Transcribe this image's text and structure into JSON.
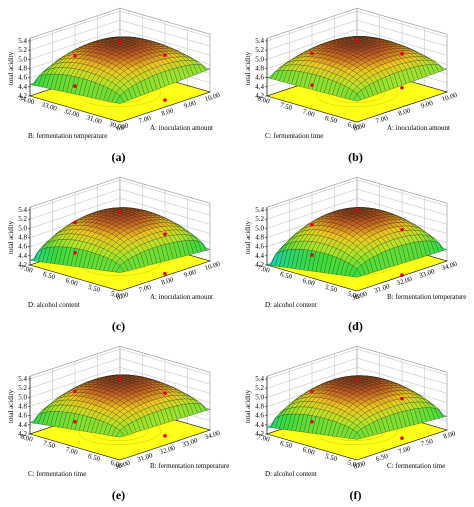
{
  "chart_data": [
    {
      "type": "surface3d",
      "panel_label": "(a)",
      "zlabel": "total acidity",
      "xlabel": "A: inoculation amount",
      "ylabel": "B: fermentation temperature",
      "zticks": [
        "4.2",
        "4.4",
        "4.6",
        "4.8",
        "5.0",
        "5.2",
        "5.4"
      ],
      "xticks": [
        "6.00",
        "7.00",
        "8.00",
        "9.00",
        "10.00"
      ],
      "yticks": [
        "30.00",
        "31.00",
        "32.00",
        "33.00",
        "34.00"
      ],
      "zlim": [
        4.2,
        5.4
      ],
      "surface": {
        "peak": 5.3,
        "corners": [
          4.6,
          4.7,
          4.45,
          4.75
        ]
      },
      "design_points": [
        {
          "u": 0.5,
          "v": 0.5,
          "z": 5.34
        },
        {
          "u": 0.0,
          "v": 0.5,
          "z": 4.7
        },
        {
          "u": 1.0,
          "v": 0.5,
          "z": 4.72
        },
        {
          "u": 0.5,
          "v": 0.0,
          "z": 4.35
        },
        {
          "u": 0.5,
          "v": 1.0,
          "z": 4.75
        }
      ]
    },
    {
      "type": "surface3d",
      "panel_label": "(b)",
      "zlabel": "total acidity",
      "xlabel": "A: inoculation amount",
      "ylabel": "C: fermentation time",
      "zticks": [
        "4.2",
        "4.4",
        "4.6",
        "4.8",
        "5.0",
        "5.2",
        "5.4"
      ],
      "xticks": [
        "6.00",
        "7.00",
        "8.00",
        "9.00",
        "10.00"
      ],
      "yticks": [
        "6.00",
        "6.50",
        "7.00",
        "7.50",
        "8.00"
      ],
      "zlim": [
        4.2,
        5.4
      ],
      "surface": {
        "peak": 5.3,
        "corners": [
          4.65,
          4.7,
          4.6,
          4.75
        ]
      },
      "design_points": [
        {
          "u": 0.5,
          "v": 0.5,
          "z": 5.36
        },
        {
          "u": 0.0,
          "v": 0.5,
          "z": 4.72
        },
        {
          "u": 1.0,
          "v": 0.5,
          "z": 4.75
        },
        {
          "u": 0.5,
          "v": 0.0,
          "z": 4.62
        },
        {
          "u": 0.5,
          "v": 1.0,
          "z": 4.8
        }
      ]
    },
    {
      "type": "surface3d",
      "panel_label": "(c)",
      "zlabel": "total acidity",
      "xlabel": "A: inoculation amount",
      "ylabel": "D: alcohol content",
      "zticks": [
        "4.2",
        "4.4",
        "4.6",
        "4.8",
        "5.0",
        "5.2",
        "5.4"
      ],
      "xticks": [
        "6.00",
        "7.00",
        "8.00",
        "9.00",
        "10.00"
      ],
      "yticks": [
        "5.00",
        "5.50",
        "6.00",
        "6.50",
        "7.00"
      ],
      "zlim": [
        4.2,
        5.4
      ],
      "surface": {
        "peak": 5.28,
        "corners": [
          4.6,
          4.45,
          4.3,
          4.7
        ]
      },
      "design_points": [
        {
          "u": 0.5,
          "v": 0.5,
          "z": 5.3
        },
        {
          "u": 0.0,
          "v": 0.5,
          "z": 4.75
        },
        {
          "u": 1.0,
          "v": 0.5,
          "z": 4.5
        },
        {
          "u": 0.5,
          "v": 0.0,
          "z": 4.25
        },
        {
          "u": 0.5,
          "v": 1.0,
          "z": 4.8
        }
      ]
    },
    {
      "type": "surface3d",
      "panel_label": "(d)",
      "zlabel": "total acidity",
      "xlabel": "B: fermentation temperature",
      "ylabel": "D: alcohol content",
      "zticks": [
        "4.2",
        "4.4",
        "4.6",
        "4.8",
        "5.0",
        "5.2",
        "5.4"
      ],
      "xticks": [
        "30.00",
        "31.00",
        "32.00",
        "33.00",
        "34.00"
      ],
      "yticks": [
        "5.00",
        "5.50",
        "6.00",
        "6.50",
        "7.00"
      ],
      "zlim": [
        4.2,
        5.4
      ],
      "surface": {
        "peak": 5.3,
        "corners": [
          4.5,
          4.45,
          4.2,
          4.6
        ]
      },
      "design_points": [
        {
          "u": 0.5,
          "v": 0.5,
          "z": 5.35
        },
        {
          "u": 0.0,
          "v": 0.5,
          "z": 4.7
        },
        {
          "u": 1.0,
          "v": 0.5,
          "z": 4.6
        },
        {
          "u": 0.5,
          "v": 0.0,
          "z": 4.22
        },
        {
          "u": 0.5,
          "v": 1.0,
          "z": 4.75
        }
      ]
    },
    {
      "type": "surface3d",
      "panel_label": "(e)",
      "zlabel": "total acidity",
      "xlabel": "B: fermentation temperature",
      "ylabel": "C: fermentation time",
      "zticks": [
        "4.2",
        "4.4",
        "4.6",
        "4.8",
        "5.0",
        "5.2",
        "5.4"
      ],
      "xticks": [
        "30.00",
        "31.00",
        "32.00",
        "33.00",
        "34.00"
      ],
      "yticks": [
        "6.00",
        "6.50",
        "7.00",
        "7.50",
        "8.00"
      ],
      "zlim": [
        4.2,
        5.4
      ],
      "surface": {
        "peak": 5.3,
        "corners": [
          4.7,
          4.65,
          4.45,
          4.75
        ]
      },
      "design_points": [
        {
          "u": 0.5,
          "v": 0.5,
          "z": 5.36
        },
        {
          "u": 0.0,
          "v": 0.5,
          "z": 4.75
        },
        {
          "u": 1.0,
          "v": 0.5,
          "z": 4.72
        },
        {
          "u": 0.5,
          "v": 0.0,
          "z": 4.4
        },
        {
          "u": 0.5,
          "v": 1.0,
          "z": 4.8
        }
      ]
    },
    {
      "type": "surface3d",
      "panel_label": "(f)",
      "zlabel": "total acidity",
      "xlabel": "C: fermentation time",
      "ylabel": "D: alcohol content",
      "zticks": [
        "4.2",
        "4.4",
        "4.6",
        "4.8",
        "5.0",
        "5.2",
        "5.4"
      ],
      "xticks": [
        "6.00",
        "6.50",
        "7.00",
        "7.50",
        "8.00"
      ],
      "yticks": [
        "5.00",
        "5.50",
        "6.00",
        "6.50",
        "7.00"
      ],
      "zlim": [
        4.2,
        5.4
      ],
      "surface": {
        "peak": 5.3,
        "corners": [
          4.65,
          4.5,
          4.35,
          4.7
        ]
      },
      "design_points": [
        {
          "u": 0.5,
          "v": 0.5,
          "z": 5.34
        },
        {
          "u": 0.0,
          "v": 0.5,
          "z": 4.75
        },
        {
          "u": 1.0,
          "v": 0.5,
          "z": 4.6
        },
        {
          "u": 0.5,
          "v": 0.0,
          "z": 4.35
        },
        {
          "u": 0.5,
          "v": 1.0,
          "z": 4.8
        }
      ]
    }
  ]
}
